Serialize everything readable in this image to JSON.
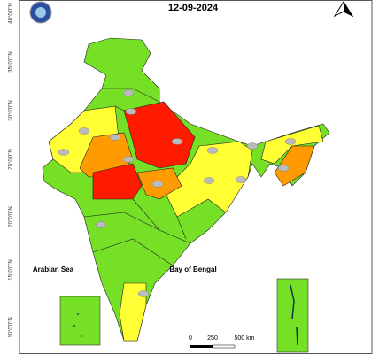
{
  "header": {
    "date": "12-09-2024"
  },
  "labels": {
    "arabian_sea": "Arabian Sea",
    "bay_of_bengal": "Bay of Bengal"
  },
  "scale_bar": {
    "ticks": [
      "0",
      "250",
      "500 km"
    ]
  },
  "latitude_labels": [
    "40°0'0\"N",
    "35°0'0\"N",
    "30°0'0\"N",
    "25°0'0\"N",
    "20°0'0\"N",
    "15°0'0\"N",
    "10°0'0\"N"
  ]
}
